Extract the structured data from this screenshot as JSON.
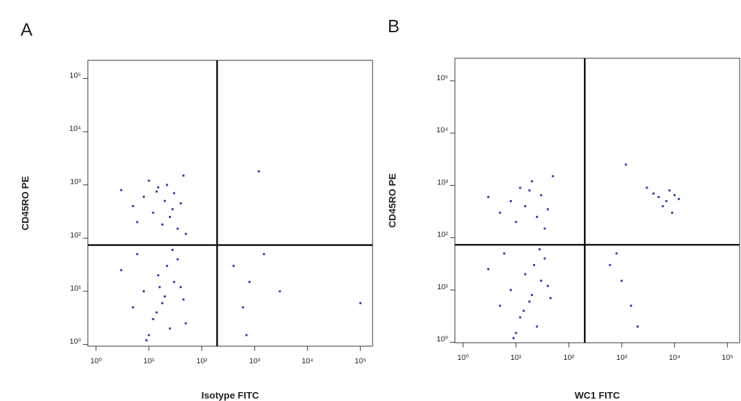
{
  "chart_data": [
    {
      "type": "scatter",
      "panel_label": "A",
      "x_label": "Isotype FITC",
      "y_label": "CD45RO PE",
      "log_x": true,
      "log_y": true,
      "color": "#2b3f9c",
      "xlim": [
        0.7,
        170000
      ],
      "ylim": [
        0.93,
        220000
      ],
      "xticks": [
        {
          "value": 1,
          "label": "10⁰"
        },
        {
          "value": 10,
          "label": "10¹"
        },
        {
          "value": 100,
          "label": "10²"
        },
        {
          "value": 1000,
          "label": "10³"
        },
        {
          "value": 10000,
          "label": "10⁴"
        },
        {
          "value": 100000,
          "label": "10⁵"
        }
      ],
      "yticks": [
        {
          "value": 1,
          "label": "10⁰"
        },
        {
          "value": 10,
          "label": "10¹"
        },
        {
          "value": 100,
          "label": "10²"
        },
        {
          "value": 1000,
          "label": "10³"
        },
        {
          "value": 10000,
          "label": "10⁴"
        },
        {
          "value": 100000,
          "label": "10⁵"
        }
      ],
      "gates": {
        "x": 195,
        "y": 74
      },
      "x": [
        5,
        8,
        12,
        15,
        20,
        25,
        30,
        35,
        10,
        18,
        22,
        40,
        6,
        14,
        28,
        45,
        3,
        50,
        5,
        8,
        12,
        15,
        20,
        25,
        30,
        35,
        10,
        18,
        22,
        40,
        6,
        14,
        28,
        45,
        3,
        50,
        9,
        16,
        400,
        800,
        1500,
        600,
        3000,
        1200,
        100000,
        700
      ],
      "y": [
        400,
        600,
        300,
        900,
        500,
        250,
        700,
        150,
        1200,
        180,
        1000,
        450,
        200,
        750,
        350,
        1500,
        800,
        120,
        5,
        10,
        3,
        20,
        8,
        2,
        15,
        40,
        1.5,
        6,
        30,
        12,
        50,
        4,
        60,
        7,
        25,
        2.5,
        1.2,
        12,
        30,
        15,
        50,
        5,
        10,
        1800,
        6,
        1.5
      ]
    },
    {
      "type": "scatter",
      "panel_label": "B",
      "x_label": "WC1 FITC",
      "y_label": "CD45RO PE",
      "log_x": true,
      "log_y": true,
      "color": "#2b3f9c",
      "xlim": [
        0.7,
        170000
      ],
      "ylim": [
        0.98,
        270000
      ],
      "xticks": [
        {
          "value": 1,
          "label": "10⁰"
        },
        {
          "value": 10,
          "label": "10¹"
        },
        {
          "value": 100,
          "label": "10²"
        },
        {
          "value": 1000,
          "label": "10³"
        },
        {
          "value": 10000,
          "label": "10⁴"
        },
        {
          "value": 100000,
          "label": "10⁵"
        }
      ],
      "yticks": [
        {
          "value": 1,
          "label": "10⁰"
        },
        {
          "value": 10,
          "label": "10¹"
        },
        {
          "value": 100,
          "label": "10²"
        },
        {
          "value": 1000,
          "label": "10³"
        },
        {
          "value": 10000,
          "label": "10⁴"
        },
        {
          "value": 100000,
          "label": "10⁵"
        }
      ],
      "gates": {
        "x": 200,
        "y": 73
      },
      "x": [
        5,
        8,
        12,
        15,
        20,
        25,
        30,
        35,
        10,
        18,
        40,
        3,
        50,
        5,
        8,
        12,
        15,
        20,
        25,
        30,
        35,
        10,
        18,
        22,
        40,
        6,
        14,
        28,
        45,
        3,
        9,
        5000,
        7000,
        8000,
        6000,
        10000,
        4000,
        9000,
        12000,
        3000,
        600,
        1000,
        1500,
        800,
        2000,
        1200
      ],
      "y": [
        300,
        500,
        900,
        400,
        1200,
        250,
        650,
        150,
        200,
        800,
        350,
        600,
        1500,
        5,
        10,
        3,
        20,
        8,
        2,
        15,
        40,
        1.5,
        6,
        30,
        12,
        50,
        4,
        60,
        7,
        25,
        1.2,
        600,
        500,
        800,
        400,
        650,
        700,
        300,
        550,
        900,
        30,
        15,
        5,
        50,
        2,
        2500
      ]
    }
  ]
}
